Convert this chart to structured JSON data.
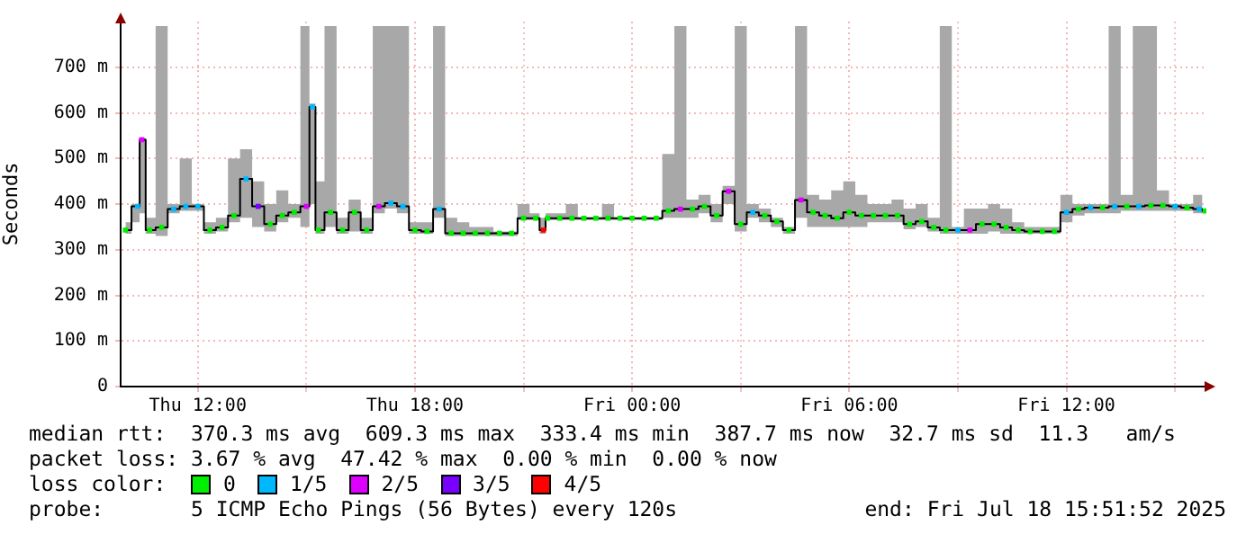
{
  "chart_data": {
    "type": "step",
    "ylabel": "Seconds",
    "legend_title": "loss color:",
    "legend": "bottom",
    "grid": true,
    "marker": "square",
    "xlim": [
      "2025-07-17T09:52",
      "2025-07-18T15:52"
    ],
    "xticks": [
      {
        "value": "2025-07-17T12:00",
        "label": "Thu 12:00"
      },
      {
        "value": "2025-07-17T15:00",
        "label": null
      },
      {
        "value": "2025-07-17T18:00",
        "label": "Thu 18:00"
      },
      {
        "value": "2025-07-17T21:00",
        "label": null
      },
      {
        "value": "2025-07-18T00:00",
        "label": "Fri 00:00"
      },
      {
        "value": "2025-07-18T03:00",
        "label": null
      },
      {
        "value": "2025-07-18T06:00",
        "label": "Fri 06:00"
      },
      {
        "value": "2025-07-18T09:00",
        "label": null
      },
      {
        "value": "2025-07-18T12:00",
        "label": "Fri 12:00"
      },
      {
        "value": "2025-07-18T15:00",
        "label": null
      }
    ],
    "ylim": [
      0,
      800
    ],
    "yticks": [
      0,
      {
        "value": 100,
        "label": "100 m"
      },
      {
        "value": 200,
        "label": "200 m"
      },
      {
        "value": 300,
        "label": "300 m"
      },
      {
        "value": 400,
        "label": "400 m"
      },
      {
        "value": 500,
        "label": "500 m"
      },
      {
        "value": 600,
        "label": "600 m"
      },
      {
        "value": 700,
        "label": "700 m"
      }
    ],
    "x": [
      "2025-07-17T10:00",
      "2025-07-17T10:20",
      "2025-07-17T10:27",
      "2025-07-17T10:40",
      "2025-07-17T11:00",
      "2025-07-17T11:20",
      "2025-07-17T11:40",
      "2025-07-17T12:00",
      "2025-07-17T12:20",
      "2025-07-17T12:40",
      "2025-07-17T13:00",
      "2025-07-17T13:20",
      "2025-07-17T13:40",
      "2025-07-17T14:00",
      "2025-07-17T14:20",
      "2025-07-17T14:40",
      "2025-07-17T15:00",
      "2025-07-17T15:10",
      "2025-07-17T15:20",
      "2025-07-17T15:40",
      "2025-07-17T16:00",
      "2025-07-17T16:20",
      "2025-07-17T16:40",
      "2025-07-17T17:00",
      "2025-07-17T17:20",
      "2025-07-17T17:40",
      "2025-07-17T18:00",
      "2025-07-17T18:20",
      "2025-07-17T18:40",
      "2025-07-17T19:00",
      "2025-07-17T19:20",
      "2025-07-17T19:40",
      "2025-07-17T20:00",
      "2025-07-17T20:20",
      "2025-07-17T20:40",
      "2025-07-17T21:00",
      "2025-07-17T21:20",
      "2025-07-17T21:33",
      "2025-07-17T21:40",
      "2025-07-17T22:00",
      "2025-07-17T22:20",
      "2025-07-17T22:40",
      "2025-07-17T23:00",
      "2025-07-17T23:20",
      "2025-07-17T23:40",
      "2025-07-18T00:00",
      "2025-07-18T00:20",
      "2025-07-18T00:40",
      "2025-07-18T01:00",
      "2025-07-18T01:20",
      "2025-07-18T01:40",
      "2025-07-18T02:00",
      "2025-07-18T02:20",
      "2025-07-18T02:40",
      "2025-07-18T03:00",
      "2025-07-18T03:20",
      "2025-07-18T03:40",
      "2025-07-18T04:00",
      "2025-07-18T04:20",
      "2025-07-18T04:40",
      "2025-07-18T05:00",
      "2025-07-18T05:20",
      "2025-07-18T05:40",
      "2025-07-18T06:00",
      "2025-07-18T06:20",
      "2025-07-18T06:40",
      "2025-07-18T07:00",
      "2025-07-18T07:20",
      "2025-07-18T07:40",
      "2025-07-18T08:00",
      "2025-07-18T08:20",
      "2025-07-18T08:40",
      "2025-07-18T09:00",
      "2025-07-18T09:20",
      "2025-07-18T09:40",
      "2025-07-18T10:00",
      "2025-07-18T10:20",
      "2025-07-18T10:40",
      "2025-07-18T11:00",
      "2025-07-18T11:20",
      "2025-07-18T11:40",
      "2025-07-18T12:00",
      "2025-07-18T12:20",
      "2025-07-18T12:40",
      "2025-07-18T13:00",
      "2025-07-18T13:20",
      "2025-07-18T13:40",
      "2025-07-18T14:00",
      "2025-07-18T14:20",
      "2025-07-18T14:40",
      "2025-07-18T15:00",
      "2025-07-18T15:20",
      "2025-07-18T15:40",
      "2025-07-18T15:50"
    ],
    "series": [
      {
        "color": "#000000",
        "values": [
          343,
          395,
          541,
          343,
          349,
          389,
          395,
          395,
          343,
          349,
          375,
          455,
          395,
          356,
          375,
          382,
          395,
          613,
          343,
          382,
          343,
          382,
          343,
          395,
          402,
          395,
          343,
          340,
          389,
          336,
          336,
          336,
          336,
          336,
          336,
          369,
          369,
          343,
          369,
          369,
          369,
          369,
          369,
          369,
          369,
          369,
          369,
          369,
          385,
          389,
          389,
          395,
          375,
          428,
          356,
          382,
          375,
          362,
          343,
          409,
          382,
          375,
          369,
          382,
          375,
          375,
          375,
          375,
          356,
          362,
          349,
          343,
          343,
          343,
          356,
          356,
          349,
          343,
          340,
          340,
          340,
          382,
          389,
          392,
          392,
          395,
          395,
          395,
          397,
          397,
          395,
          392,
          389,
          385
        ],
        "lower": [
          335,
          360,
          380,
          335,
          330,
          380,
          385,
          385,
          335,
          340,
          360,
          370,
          350,
          340,
          360,
          370,
          350,
          400,
          335,
          350,
          335,
          340,
          335,
          380,
          390,
          380,
          335,
          335,
          370,
          330,
          330,
          330,
          330,
          330,
          330,
          365,
          365,
          335,
          365,
          365,
          365,
          365,
          365,
          365,
          365,
          365,
          365,
          365,
          370,
          370,
          370,
          380,
          360,
          400,
          340,
          370,
          360,
          350,
          335,
          370,
          350,
          350,
          350,
          350,
          350,
          360,
          360,
          360,
          345,
          350,
          340,
          335,
          335,
          335,
          335,
          340,
          335,
          335,
          335,
          335,
          335,
          360,
          375,
          380,
          380,
          380,
          385,
          385,
          385,
          385,
          385,
          385,
          380,
          380
        ],
        "upper": [
          360,
          400,
          545,
          370,
          790,
          400,
          500,
          400,
          360,
          370,
          500,
          520,
          450,
          400,
          430,
          400,
          790,
          620,
          450,
          790,
          370,
          410,
          370,
          790,
          790,
          790,
          360,
          360,
          790,
          370,
          360,
          350,
          350,
          340,
          340,
          400,
          380,
          370,
          380,
          380,
          400,
          370,
          370,
          400,
          370,
          370,
          370,
          370,
          510,
          790,
          410,
          420,
          400,
          440,
          790,
          400,
          390,
          370,
          350,
          790,
          420,
          410,
          430,
          450,
          420,
          400,
          400,
          410,
          390,
          400,
          370,
          790,
          350,
          390,
          390,
          400,
          390,
          360,
          350,
          350,
          350,
          420,
          400,
          400,
          400,
          790,
          420,
          790,
          790,
          430,
          400,
          400,
          420,
          390
        ]
      },
      {
        "type": "scatter",
        "name": "0",
        "color": "#00ee00",
        "values": [
          343,
          null,
          null,
          343,
          349,
          null,
          null,
          null,
          343,
          349,
          375,
          null,
          null,
          356,
          375,
          382,
          null,
          null,
          343,
          382,
          343,
          382,
          343,
          null,
          null,
          null,
          343,
          340,
          null,
          336,
          336,
          336,
          336,
          336,
          336,
          369,
          369,
          null,
          369,
          369,
          369,
          369,
          369,
          369,
          369,
          369,
          369,
          369,
          385,
          null,
          389,
          395,
          375,
          null,
          356,
          null,
          375,
          362,
          343,
          null,
          382,
          375,
          369,
          382,
          375,
          375,
          375,
          375,
          356,
          362,
          349,
          343,
          null,
          null,
          356,
          356,
          349,
          343,
          340,
          340,
          340,
          null,
          389,
          null,
          392,
          null,
          395,
          null,
          397,
          397,
          null,
          392,
          null,
          385
        ]
      },
      {
        "type": "scatter",
        "name": "1/5",
        "color": "#00b8ff",
        "x": [
          "2025-07-17T10:20",
          "2025-07-17T11:20",
          "2025-07-17T11:40",
          "2025-07-17T12:00",
          "2025-07-17T13:20",
          "2025-07-17T15:10",
          "2025-07-17T17:20",
          "2025-07-17T17:40",
          "2025-07-17T18:40",
          "2025-07-18T03:20",
          "2025-07-18T09:00",
          "2025-07-18T12:00",
          "2025-07-18T12:40",
          "2025-07-18T13:20",
          "2025-07-18T14:00",
          "2025-07-18T15:00",
          "2025-07-18T15:40"
        ],
        "values": [
          395,
          389,
          395,
          395,
          455,
          613,
          402,
          395,
          389,
          382,
          343,
          382,
          392,
          395,
          395,
          395,
          389
        ]
      },
      {
        "type": "scatter",
        "name": "2/5",
        "color": "#dd00ff",
        "x": [
          "2025-07-17T10:27",
          "2025-07-17T15:00",
          "2025-07-17T17:00",
          "2025-07-18T01:20",
          "2025-07-18T02:40",
          "2025-07-18T04:40",
          "2025-07-18T09:20"
        ],
        "values": [
          541,
          395,
          395,
          389,
          428,
          409,
          343
        ]
      },
      {
        "type": "scatter",
        "name": "3/5",
        "color": "#7700ff",
        "x": [
          "2025-07-17T13:40"
        ],
        "values": [
          395
        ]
      },
      {
        "type": "scatter",
        "name": "4/5",
        "color": "#ff0000",
        "x": [
          "2025-07-17T21:33"
        ],
        "values": [
          343
        ]
      }
    ],
    "annotations": [
      "median rtt:  370.3 ms avg  609.3 ms max  333.4 ms min  387.7 ms now  32.7 ms sd  11.3   am/s",
      "packet loss: 3.67 % avg  47.42 % max  0.00 % min  0.00 % now",
      "probe:       5 ICMP Echo Pings (56 Bytes) every 120s",
      "end: Fri Jul 18 15:51:52 2025"
    ]
  }
}
